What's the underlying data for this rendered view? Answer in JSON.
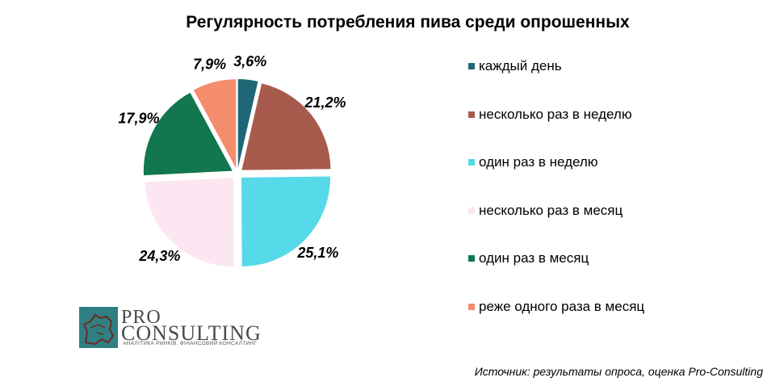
{
  "chart_data": {
    "type": "pie",
    "title": "Регулярность потребления пива среди опрошенных",
    "categories": [
      "каждый день",
      "несколько раз в неделю",
      "один раз в неделю",
      "несколько раз в месяц",
      "один раз в месяц",
      "реже одного раза в месяц"
    ],
    "values": [
      3.6,
      21.2,
      25.1,
      24.3,
      17.9,
      7.9
    ],
    "value_labels": [
      "3,6%",
      "21,2%",
      "25,1%",
      "24,3%",
      "17,9%",
      "7,9%"
    ],
    "colors": [
      "#1f6676",
      "#a85a4d",
      "#56d9e8",
      "#fbe6f1",
      "#12764e",
      "#f48c6e"
    ],
    "legend_position": "right",
    "exploded": true
  },
  "logo": {
    "line1": "PRO",
    "line2": "CONSULTING",
    "tagline": "АНАЛІТИКА РИНКІВ. ФІНАНСОВИЙ КОНСАЛТИНГ"
  },
  "source": "Источник: результаты опроса, оценка Pro-Consulting"
}
